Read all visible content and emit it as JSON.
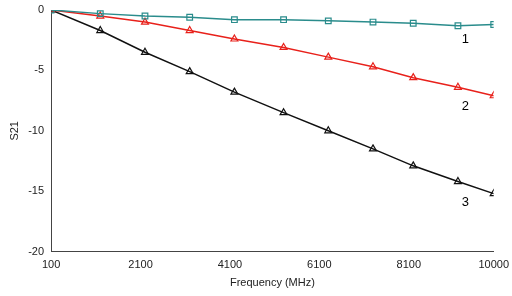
{
  "chart_data": {
    "type": "line",
    "x_label": "Frequency (MHz)",
    "y_label": "S21",
    "x": [
      100,
      1200,
      2200,
      3200,
      4200,
      5300,
      6300,
      7300,
      8200,
      9200,
      10000
    ],
    "series": [
      {
        "name": "1",
        "color": "#2a8c8c",
        "marker": "square",
        "values": [
          0,
          -0.3,
          -0.5,
          -0.6,
          -0.8,
          -0.8,
          -0.9,
          -1.0,
          -1.1,
          -1.3,
          -1.2
        ]
      },
      {
        "name": "2",
        "color": "#e8211b",
        "marker": "triangle",
        "values": [
          0,
          -0.5,
          -1.0,
          -1.7,
          -2.4,
          -3.1,
          -3.9,
          -4.7,
          -5.6,
          -6.4,
          -7.1
        ]
      },
      {
        "name": "3",
        "color": "#111111",
        "marker": "triangle",
        "values": [
          0,
          -1.7,
          -3.5,
          -5.1,
          -6.8,
          -8.5,
          -10.0,
          -11.5,
          -12.9,
          -14.2,
          -15.2
        ]
      }
    ],
    "xlim": [
      100,
      10000
    ],
    "xticks": [
      100,
      2100,
      4100,
      6100,
      8100,
      10000
    ],
    "ylim": [
      -20,
      0
    ],
    "yticks": [
      -20,
      -15,
      -10,
      -5,
      0
    ],
    "grid": false
  }
}
